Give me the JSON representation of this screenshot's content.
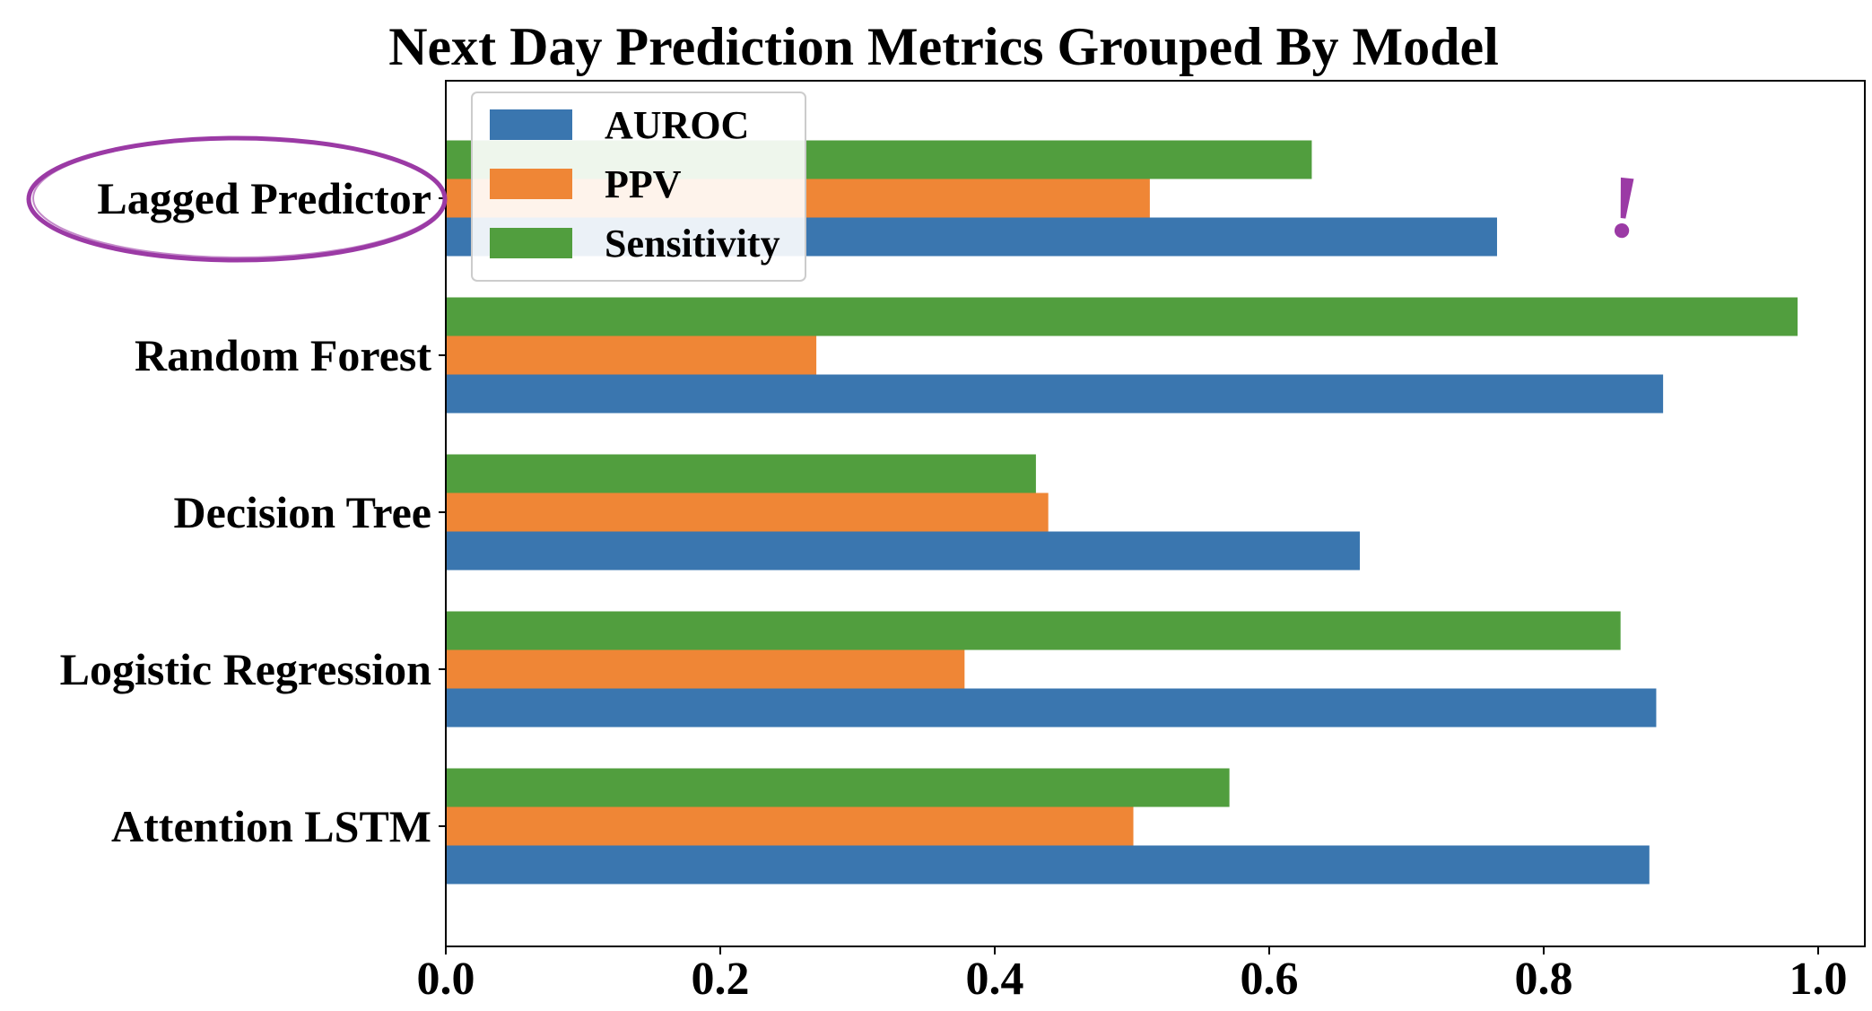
{
  "chart_data": {
    "type": "bar",
    "orientation": "horizontal",
    "title": "Next Day Prediction Metrics Grouped By Model",
    "xlabel": "",
    "ylabel": "",
    "xlim": [
      0.0,
      1.0
    ],
    "x_ticks": [
      "0.0",
      "0.2",
      "0.4",
      "0.6",
      "0.8",
      "1.0"
    ],
    "categories": [
      "Lagged Predictor",
      "Random Forest",
      "Decision Tree",
      "Logistic Regression",
      "Attention LSTM"
    ],
    "series": [
      {
        "name": "AUROC",
        "color": "#3a76af",
        "values": [
          0.766,
          0.887,
          0.666,
          0.882,
          0.877
        ]
      },
      {
        "name": "PPV",
        "color": "#ef8636",
        "values": [
          0.513,
          0.27,
          0.439,
          0.378,
          0.501
        ]
      },
      {
        "name": "Sensitivity",
        "color": "#519e3e",
        "values": [
          0.631,
          0.985,
          0.43,
          0.856,
          0.571
        ]
      }
    ],
    "grid": false,
    "legend": {
      "position": "top-left"
    },
    "annotations": {
      "highlighted_category": "Lagged Predictor",
      "highlight_color": "#9b3aa5",
      "exclamation_text": "!"
    }
  }
}
